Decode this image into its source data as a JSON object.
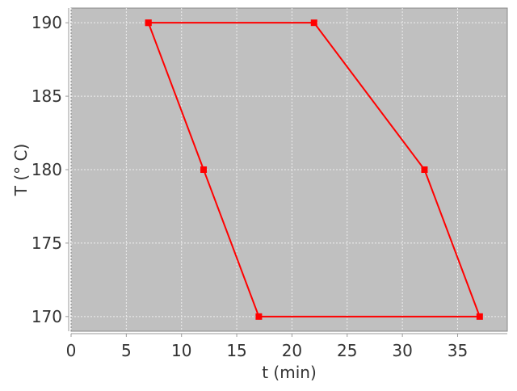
{
  "chart_data": {
    "type": "line",
    "title": "",
    "xlabel": "t (min)",
    "ylabel": "T (° C)",
    "xlim": [
      0,
      39.5
    ],
    "ylim": [
      169,
      191
    ],
    "xticks": [
      0,
      5,
      10,
      15,
      20,
      25,
      30,
      35
    ],
    "yticks": [
      170,
      175,
      180,
      185,
      190
    ],
    "grid": true,
    "background": "#c0c0c0",
    "series": [
      {
        "color": "#ff0000",
        "marker": "square",
        "x": [
          7,
          22,
          32,
          37,
          17,
          12,
          7
        ],
        "y": [
          190,
          190,
          180,
          170,
          170,
          180,
          190
        ]
      }
    ]
  }
}
